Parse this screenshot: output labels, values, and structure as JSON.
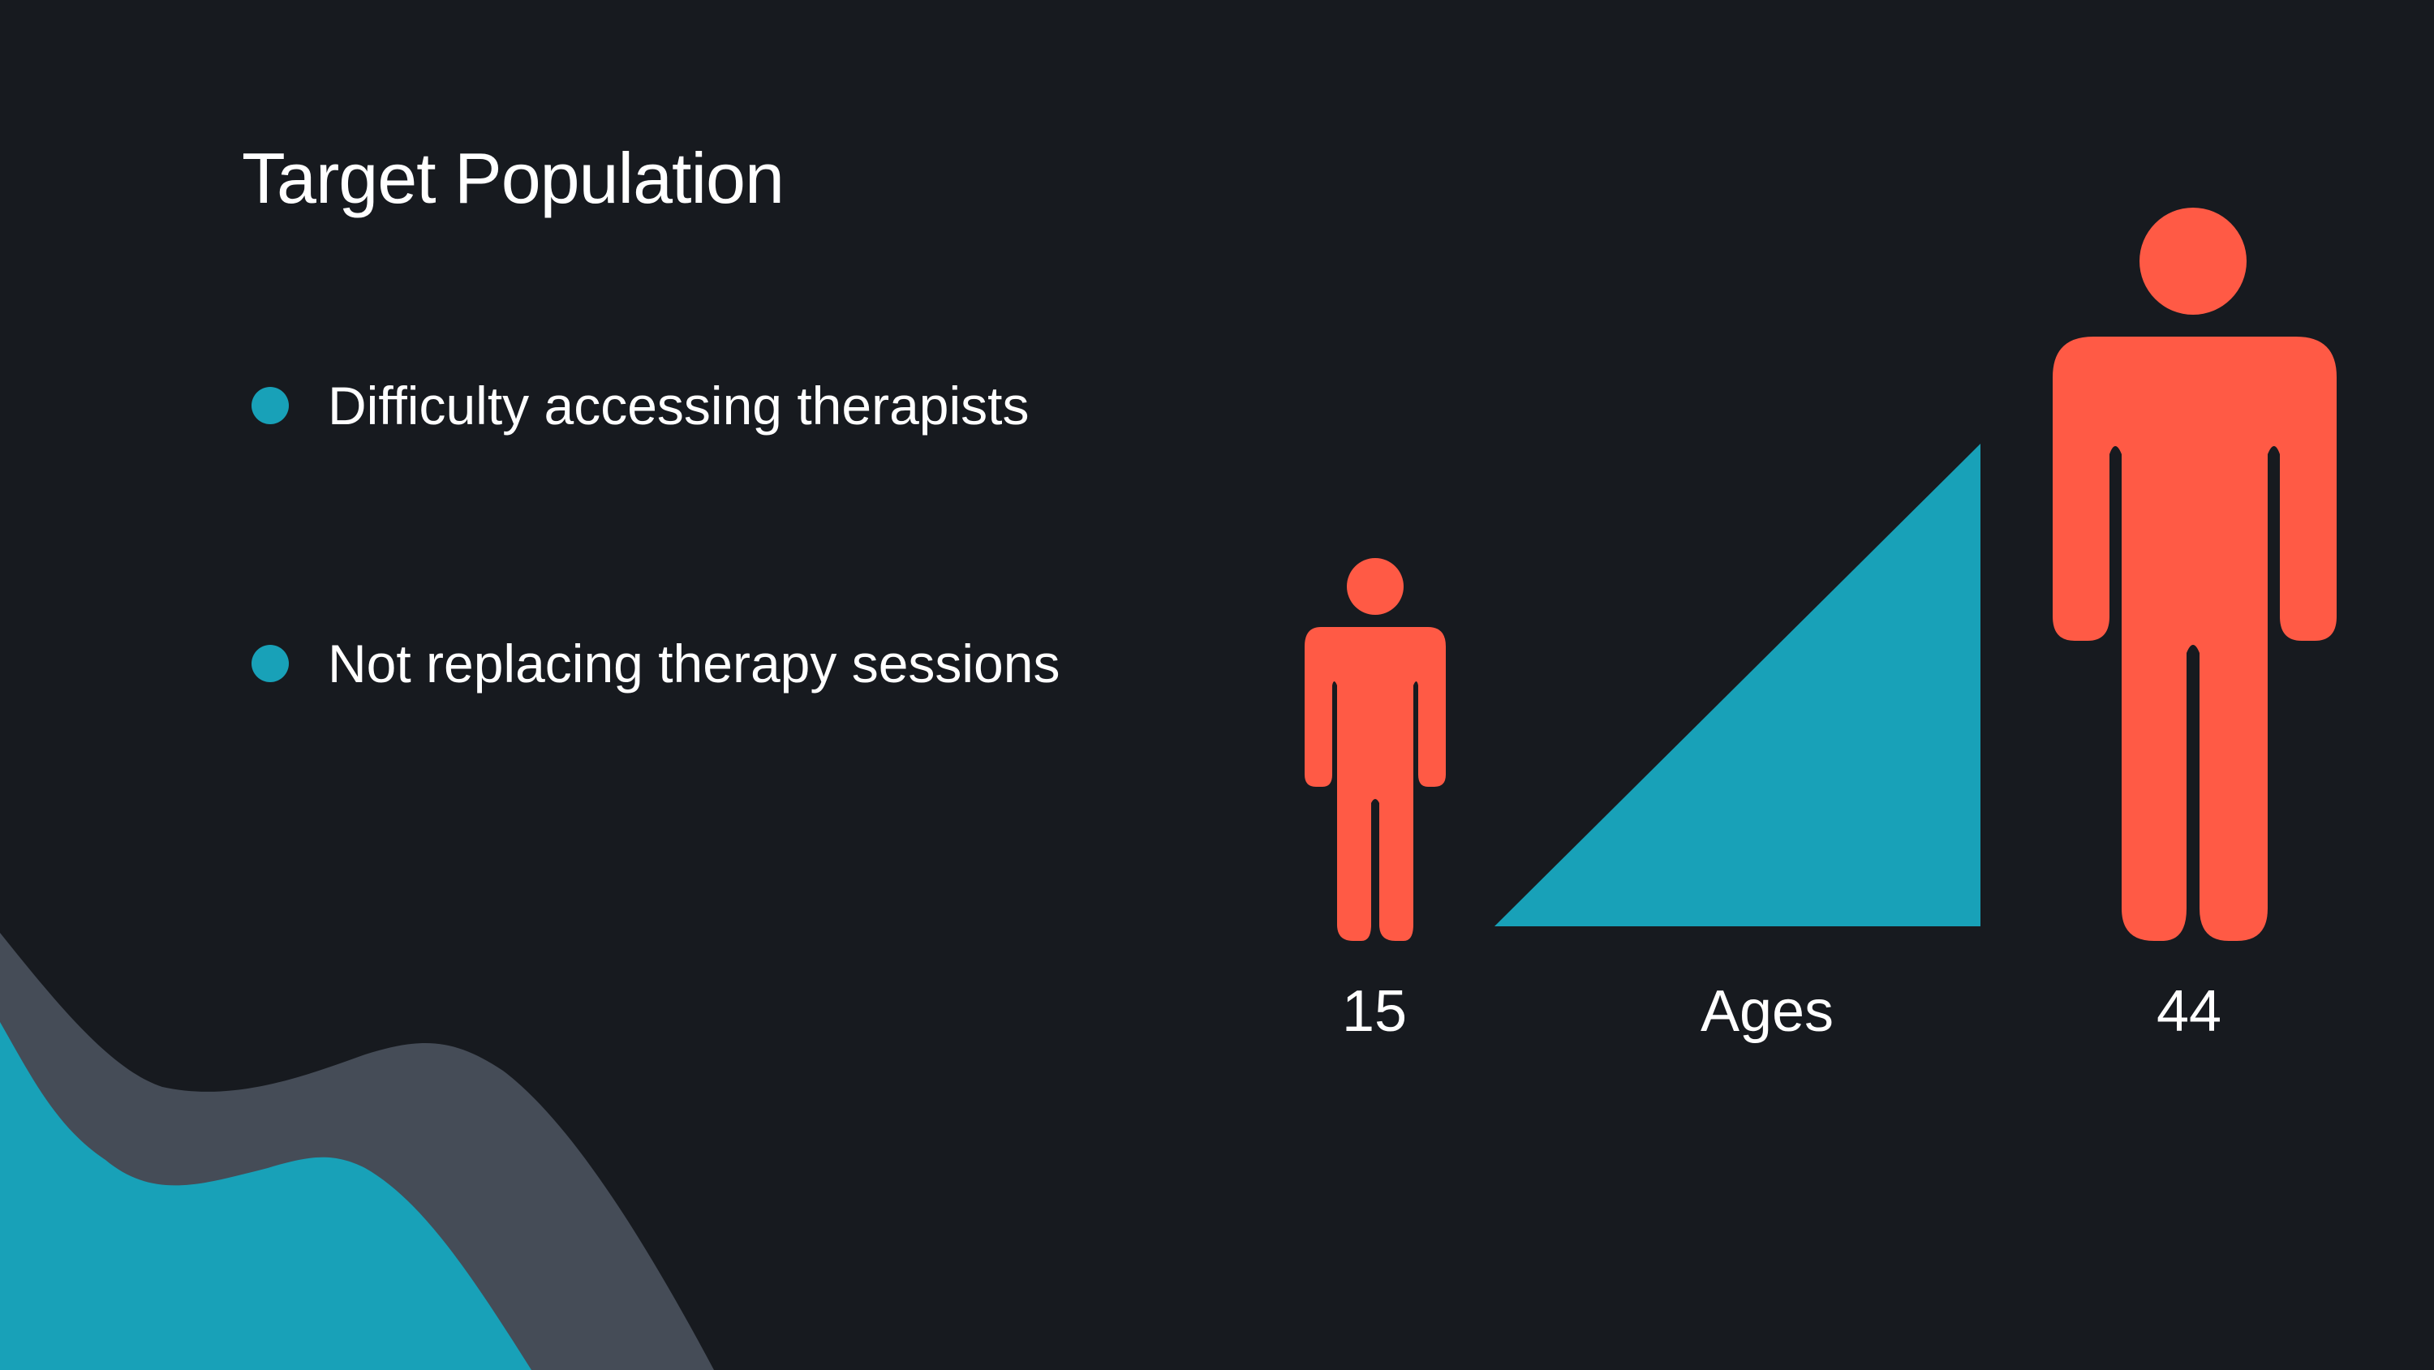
{
  "slide": {
    "title": "Target Population",
    "bullets": [
      {
        "text": "Difficulty accessing therapists"
      },
      {
        "text": "Not replacing therapy sessions"
      }
    ]
  },
  "age_graphic": {
    "min_age": "15",
    "axis_label": "Ages",
    "max_age": "44",
    "figure_icon": "person-icon",
    "wedge_icon": "ramp-triangle"
  },
  "colors": {
    "background": "#171a1f",
    "accent_teal": "#18a1b8",
    "accent_coral": "#ff5a45",
    "wave_gray": "#454c57",
    "text": "#ffffff"
  }
}
